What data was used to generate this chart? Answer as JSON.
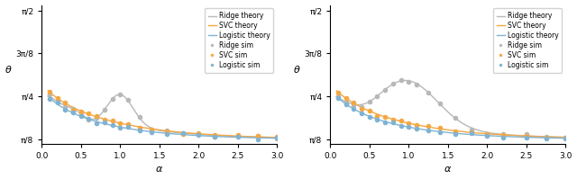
{
  "figsize": [
    6.4,
    1.99
  ],
  "dpi": 100,
  "colors": {
    "ridge": "#b8b8b8",
    "svc": "#f5a742",
    "logistic": "#7fb3d3"
  },
  "legend_entries": [
    "Ridge theory",
    "SVC theory",
    "Logistic theory",
    "Ridge sim",
    "SVC sim",
    "Logistic sim"
  ],
  "xlabel": "α",
  "ylabel": "θ",
  "ytick_labels": [
    "π/8",
    "π/4",
    "3π/8",
    "π/2"
  ],
  "xtick_labels": [
    "0.0",
    "0.5",
    "1.0",
    "1.5",
    "2.0",
    "2.5",
    "3.0"
  ],
  "xlim": [
    0.0,
    3.0
  ]
}
